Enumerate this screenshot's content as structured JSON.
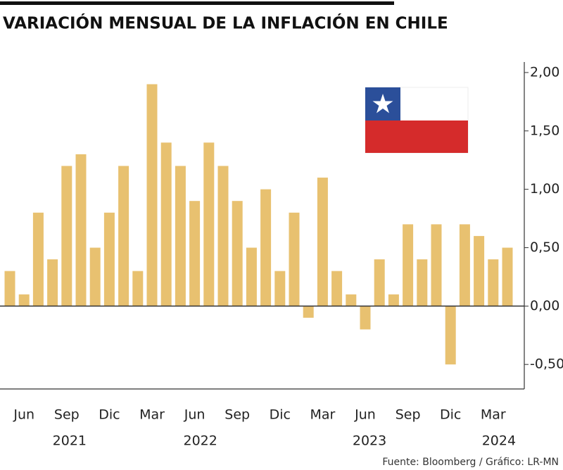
{
  "chart_data": {
    "type": "bar",
    "title": "VARIACIÓN MENSUAL DE LA INFLACIÓN EN CHILE",
    "source": "Fuente: Bloomberg / Gráfico: LR-MN",
    "categories": [
      null,
      "Jun",
      null,
      null,
      "Sep",
      null,
      null,
      "Dic",
      null,
      null,
      "Mar",
      null,
      null,
      "Jun",
      null,
      null,
      "Sep",
      null,
      null,
      "Dic",
      null,
      null,
      "Mar",
      null,
      null,
      "Jun",
      null,
      null,
      "Sep",
      null,
      null,
      "Dic",
      null,
      null,
      "Mar",
      null
    ],
    "year_labels": [
      "2021",
      "2022",
      "2023",
      "2024"
    ],
    "values": [
      0.3,
      0.1,
      0.8,
      0.4,
      1.2,
      1.3,
      0.5,
      0.8,
      1.2,
      0.3,
      1.9,
      1.4,
      1.2,
      0.9,
      1.4,
      1.2,
      0.9,
      0.5,
      1.0,
      0.3,
      0.8,
      -0.1,
      1.1,
      0.3,
      0.1,
      -0.2,
      0.4,
      0.1,
      0.7,
      0.4,
      0.7,
      -0.5,
      0.7,
      0.6,
      0.4,
      0.5
    ],
    "color": "#e8c170",
    "ylim": [
      -0.71,
      2.09
    ],
    "yticks": [
      {
        "value": 2,
        "label": "2,00"
      },
      {
        "value": 1.5,
        "label": "1,50"
      },
      {
        "value": 1,
        "label": "1,00"
      },
      {
        "value": 0.5,
        "label": "0,50"
      },
      {
        "value": 0,
        "label": "0,00"
      },
      {
        "value": -0.5,
        "label": "-0,50"
      }
    ],
    "grid": false
  }
}
